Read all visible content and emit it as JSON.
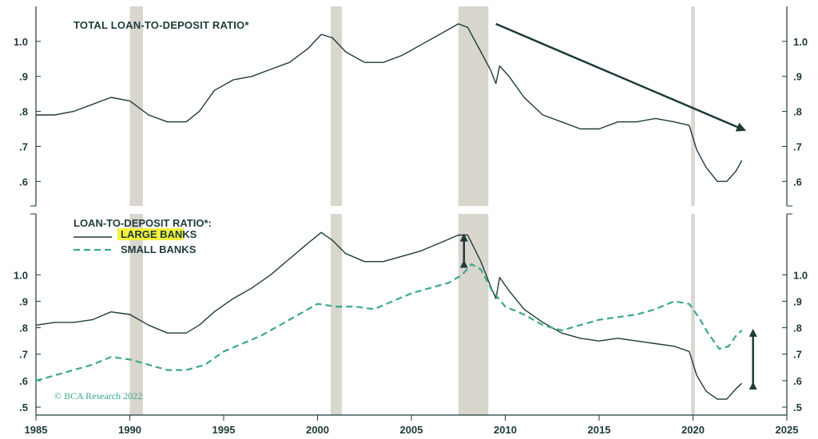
{
  "chart_data": [
    {
      "type": "line",
      "title": "TOTAL LOAN-TO-DEPOSIT RATIO*",
      "xlim": [
        1985,
        2025
      ],
      "ylim": [
        0.53,
        1.1
      ],
      "ytick_values": [
        0.6,
        0.7,
        0.8,
        0.9,
        1.0
      ],
      "ytick_labels": [
        ".6",
        ".7",
        ".8",
        ".9",
        "1.0"
      ],
      "series": [
        {
          "name": "Total",
          "color": "#1e3a3a",
          "points": [
            [
              1985,
              0.79
            ],
            [
              1986,
              0.79
            ],
            [
              1987,
              0.8
            ],
            [
              1988,
              0.82
            ],
            [
              1989,
              0.84
            ],
            [
              1990,
              0.83
            ],
            [
              1991,
              0.79
            ],
            [
              1992,
              0.77
            ],
            [
              1993,
              0.77
            ],
            [
              1993.7,
              0.8
            ],
            [
              1994.5,
              0.86
            ],
            [
              1995.5,
              0.89
            ],
            [
              1996.5,
              0.9
            ],
            [
              1997.5,
              0.92
            ],
            [
              1998.5,
              0.94
            ],
            [
              1999.5,
              0.98
            ],
            [
              2000.2,
              1.02
            ],
            [
              2000.8,
              1.01
            ],
            [
              2001.5,
              0.97
            ],
            [
              2002.5,
              0.94
            ],
            [
              2003.5,
              0.94
            ],
            [
              2004.5,
              0.96
            ],
            [
              2005.5,
              0.99
            ],
            [
              2006.5,
              1.02
            ],
            [
              2007.5,
              1.05
            ],
            [
              2008,
              1.04
            ],
            [
              2008.7,
              0.97
            ],
            [
              2009.2,
              0.92
            ],
            [
              2009.5,
              0.88
            ],
            [
              2009.7,
              0.93
            ],
            [
              2010.2,
              0.9
            ],
            [
              2011,
              0.84
            ],
            [
              2012,
              0.79
            ],
            [
              2013,
              0.77
            ],
            [
              2014,
              0.75
            ],
            [
              2015,
              0.75
            ],
            [
              2016,
              0.77
            ],
            [
              2017,
              0.77
            ],
            [
              2018,
              0.78
            ],
            [
              2019,
              0.77
            ],
            [
              2019.8,
              0.76
            ],
            [
              2020.2,
              0.69
            ],
            [
              2020.7,
              0.64
            ],
            [
              2021.3,
              0.6
            ],
            [
              2021.8,
              0.6
            ],
            [
              2022.3,
              0.63
            ],
            [
              2022.6,
              0.66
            ]
          ]
        }
      ],
      "annotations": [
        {
          "type": "arrow",
          "from": [
            2009.5,
            1.05
          ],
          "to": [
            2022.6,
            0.75
          ]
        }
      ]
    },
    {
      "type": "line",
      "title": "LOAN-TO-DEPOSIT RATIO*:",
      "xlim": [
        1985,
        2025
      ],
      "ylim": [
        0.47,
        1.23
      ],
      "ytick_values": [
        0.5,
        0.6,
        0.7,
        0.8,
        0.9,
        1.0
      ],
      "ytick_labels": [
        ".5",
        ".6",
        ".7",
        ".8",
        ".9",
        "1.0"
      ],
      "series": [
        {
          "name": "LARGE BANKS",
          "style": "solid",
          "color": "#1e3a3a",
          "points": [
            [
              1985,
              0.81
            ],
            [
              1986,
              0.82
            ],
            [
              1987,
              0.82
            ],
            [
              1988,
              0.83
            ],
            [
              1989,
              0.86
            ],
            [
              1990,
              0.85
            ],
            [
              1991,
              0.81
            ],
            [
              1992,
              0.78
            ],
            [
              1993,
              0.78
            ],
            [
              1993.7,
              0.81
            ],
            [
              1994.5,
              0.86
            ],
            [
              1995.5,
              0.91
            ],
            [
              1996.5,
              0.95
            ],
            [
              1997.5,
              1.0
            ],
            [
              1998.5,
              1.06
            ],
            [
              1999.5,
              1.12
            ],
            [
              2000.2,
              1.16
            ],
            [
              2000.8,
              1.13
            ],
            [
              2001.5,
              1.08
            ],
            [
              2002.5,
              1.05
            ],
            [
              2003.5,
              1.05
            ],
            [
              2004.5,
              1.07
            ],
            [
              2005.5,
              1.09
            ],
            [
              2006.5,
              1.12
            ],
            [
              2007.5,
              1.15
            ],
            [
              2008,
              1.15
            ],
            [
              2008.7,
              1.05
            ],
            [
              2009.2,
              0.96
            ],
            [
              2009.5,
              0.91
            ],
            [
              2009.7,
              0.99
            ],
            [
              2010.2,
              0.94
            ],
            [
              2011,
              0.87
            ],
            [
              2012,
              0.82
            ],
            [
              2013,
              0.78
            ],
            [
              2014,
              0.76
            ],
            [
              2015,
              0.75
            ],
            [
              2016,
              0.76
            ],
            [
              2017,
              0.75
            ],
            [
              2018,
              0.74
            ],
            [
              2019,
              0.73
            ],
            [
              2019.8,
              0.71
            ],
            [
              2020.2,
              0.62
            ],
            [
              2020.7,
              0.56
            ],
            [
              2021.3,
              0.53
            ],
            [
              2021.8,
              0.53
            ],
            [
              2022.3,
              0.57
            ],
            [
              2022.6,
              0.59
            ]
          ]
        },
        {
          "name": "SMALL BANKS",
          "style": "dashed",
          "color": "#3aa88a",
          "points": [
            [
              1985,
              0.6
            ],
            [
              1986,
              0.62
            ],
            [
              1987,
              0.64
            ],
            [
              1988,
              0.66
            ],
            [
              1989,
              0.69
            ],
            [
              1990,
              0.68
            ],
            [
              1991,
              0.66
            ],
            [
              1992,
              0.64
            ],
            [
              1993,
              0.64
            ],
            [
              1994,
              0.66
            ],
            [
              1995,
              0.71
            ],
            [
              1996,
              0.74
            ],
            [
              1997,
              0.77
            ],
            [
              1998,
              0.81
            ],
            [
              1999,
              0.85
            ],
            [
              2000,
              0.89
            ],
            [
              2001,
              0.88
            ],
            [
              2002,
              0.88
            ],
            [
              2003,
              0.87
            ],
            [
              2004,
              0.9
            ],
            [
              2005,
              0.93
            ],
            [
              2006,
              0.95
            ],
            [
              2007,
              0.97
            ],
            [
              2007.7,
              1.0
            ],
            [
              2008.2,
              1.04
            ],
            [
              2008.7,
              1.02
            ],
            [
              2009.3,
              0.94
            ],
            [
              2010,
              0.88
            ],
            [
              2011,
              0.85
            ],
            [
              2012,
              0.81
            ],
            [
              2013,
              0.79
            ],
            [
              2014,
              0.81
            ],
            [
              2015,
              0.83
            ],
            [
              2016,
              0.84
            ],
            [
              2017,
              0.85
            ],
            [
              2018,
              0.87
            ],
            [
              2019,
              0.9
            ],
            [
              2019.8,
              0.89
            ],
            [
              2020.3,
              0.84
            ],
            [
              2020.8,
              0.78
            ],
            [
              2021.4,
              0.72
            ],
            [
              2021.9,
              0.73
            ],
            [
              2022.3,
              0.77
            ],
            [
              2022.6,
              0.79
            ]
          ]
        }
      ],
      "annotations": [
        {
          "type": "double-arrow",
          "x": 2007.8,
          "y_from": 1.05,
          "y_to": 1.15
        },
        {
          "type": "double-arrow",
          "x": 2023.2,
          "y_from": 0.59,
          "y_to": 0.79
        }
      ]
    }
  ],
  "x_axis": {
    "ticks": [
      1985,
      1990,
      1995,
      2000,
      2005,
      2010,
      2015,
      2020,
      2025
    ],
    "labels": [
      "1985",
      "1990",
      "1995",
      "2000",
      "2005",
      "2010",
      "2015",
      "2020",
      "2025"
    ]
  },
  "recessions": [
    [
      1990.0,
      1990.7
    ],
    [
      2000.7,
      2001.3
    ],
    [
      2007.5,
      2009.1
    ],
    [
      2019.9,
      2020.1
    ]
  ],
  "legend": {
    "title": "LOAN-TO-DEPOSIT RATIO*:",
    "items": [
      {
        "label": "LARGE BANKS",
        "highlight": true
      },
      {
        "label": "SMALL BANKS",
        "highlight": false
      }
    ]
  },
  "top_title": "TOTAL LOAN-TO-DEPOSIT RATIO*",
  "credit": "© BCA Research 2022",
  "colors": {
    "line": "#1e3a3a",
    "dashed": "#3aa88a",
    "recession": "#d4d1c8",
    "highlight": "#f4f23c"
  }
}
